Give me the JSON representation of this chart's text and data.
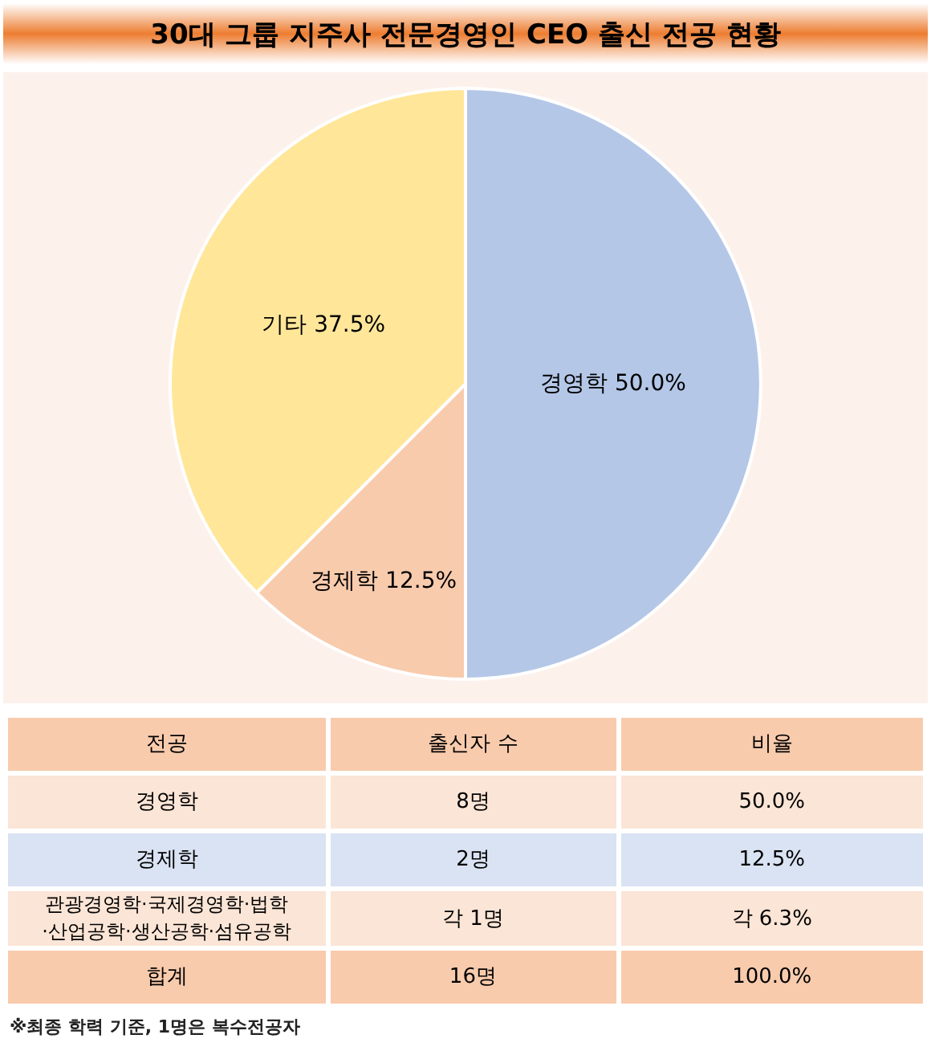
{
  "chart_data": [
    {
      "type": "pie",
      "title": "30대 그룹 지주사 전문경영인 CEO 출신 전공 현황",
      "categories": [
        "경영학",
        "경제학",
        "기타"
      ],
      "values": [
        50,
        12.5,
        37.5
      ],
      "colors": [
        "#b4c7e7",
        "#f8cbad",
        "#ffe699"
      ],
      "value_labels": [
        "50.0%",
        "12.5%",
        "37.5%"
      ],
      "annotations": [
        "※최종 학력 기준, 1명은 복수전공자"
      ]
    },
    {
      "type": "other",
      "annotations": [
        "전공",
        "출신자 수",
        "비율",
        "경영학",
        "8명",
        "50.0%",
        "경제학",
        "2명",
        "12.5%",
        "관광경영학·국제경영학·법학\n·산업공학·생산공학·섬유공학",
        "각 1명",
        "각 6.3%",
        "합계",
        "16명",
        "100.0%"
      ]
    }
  ]
}
